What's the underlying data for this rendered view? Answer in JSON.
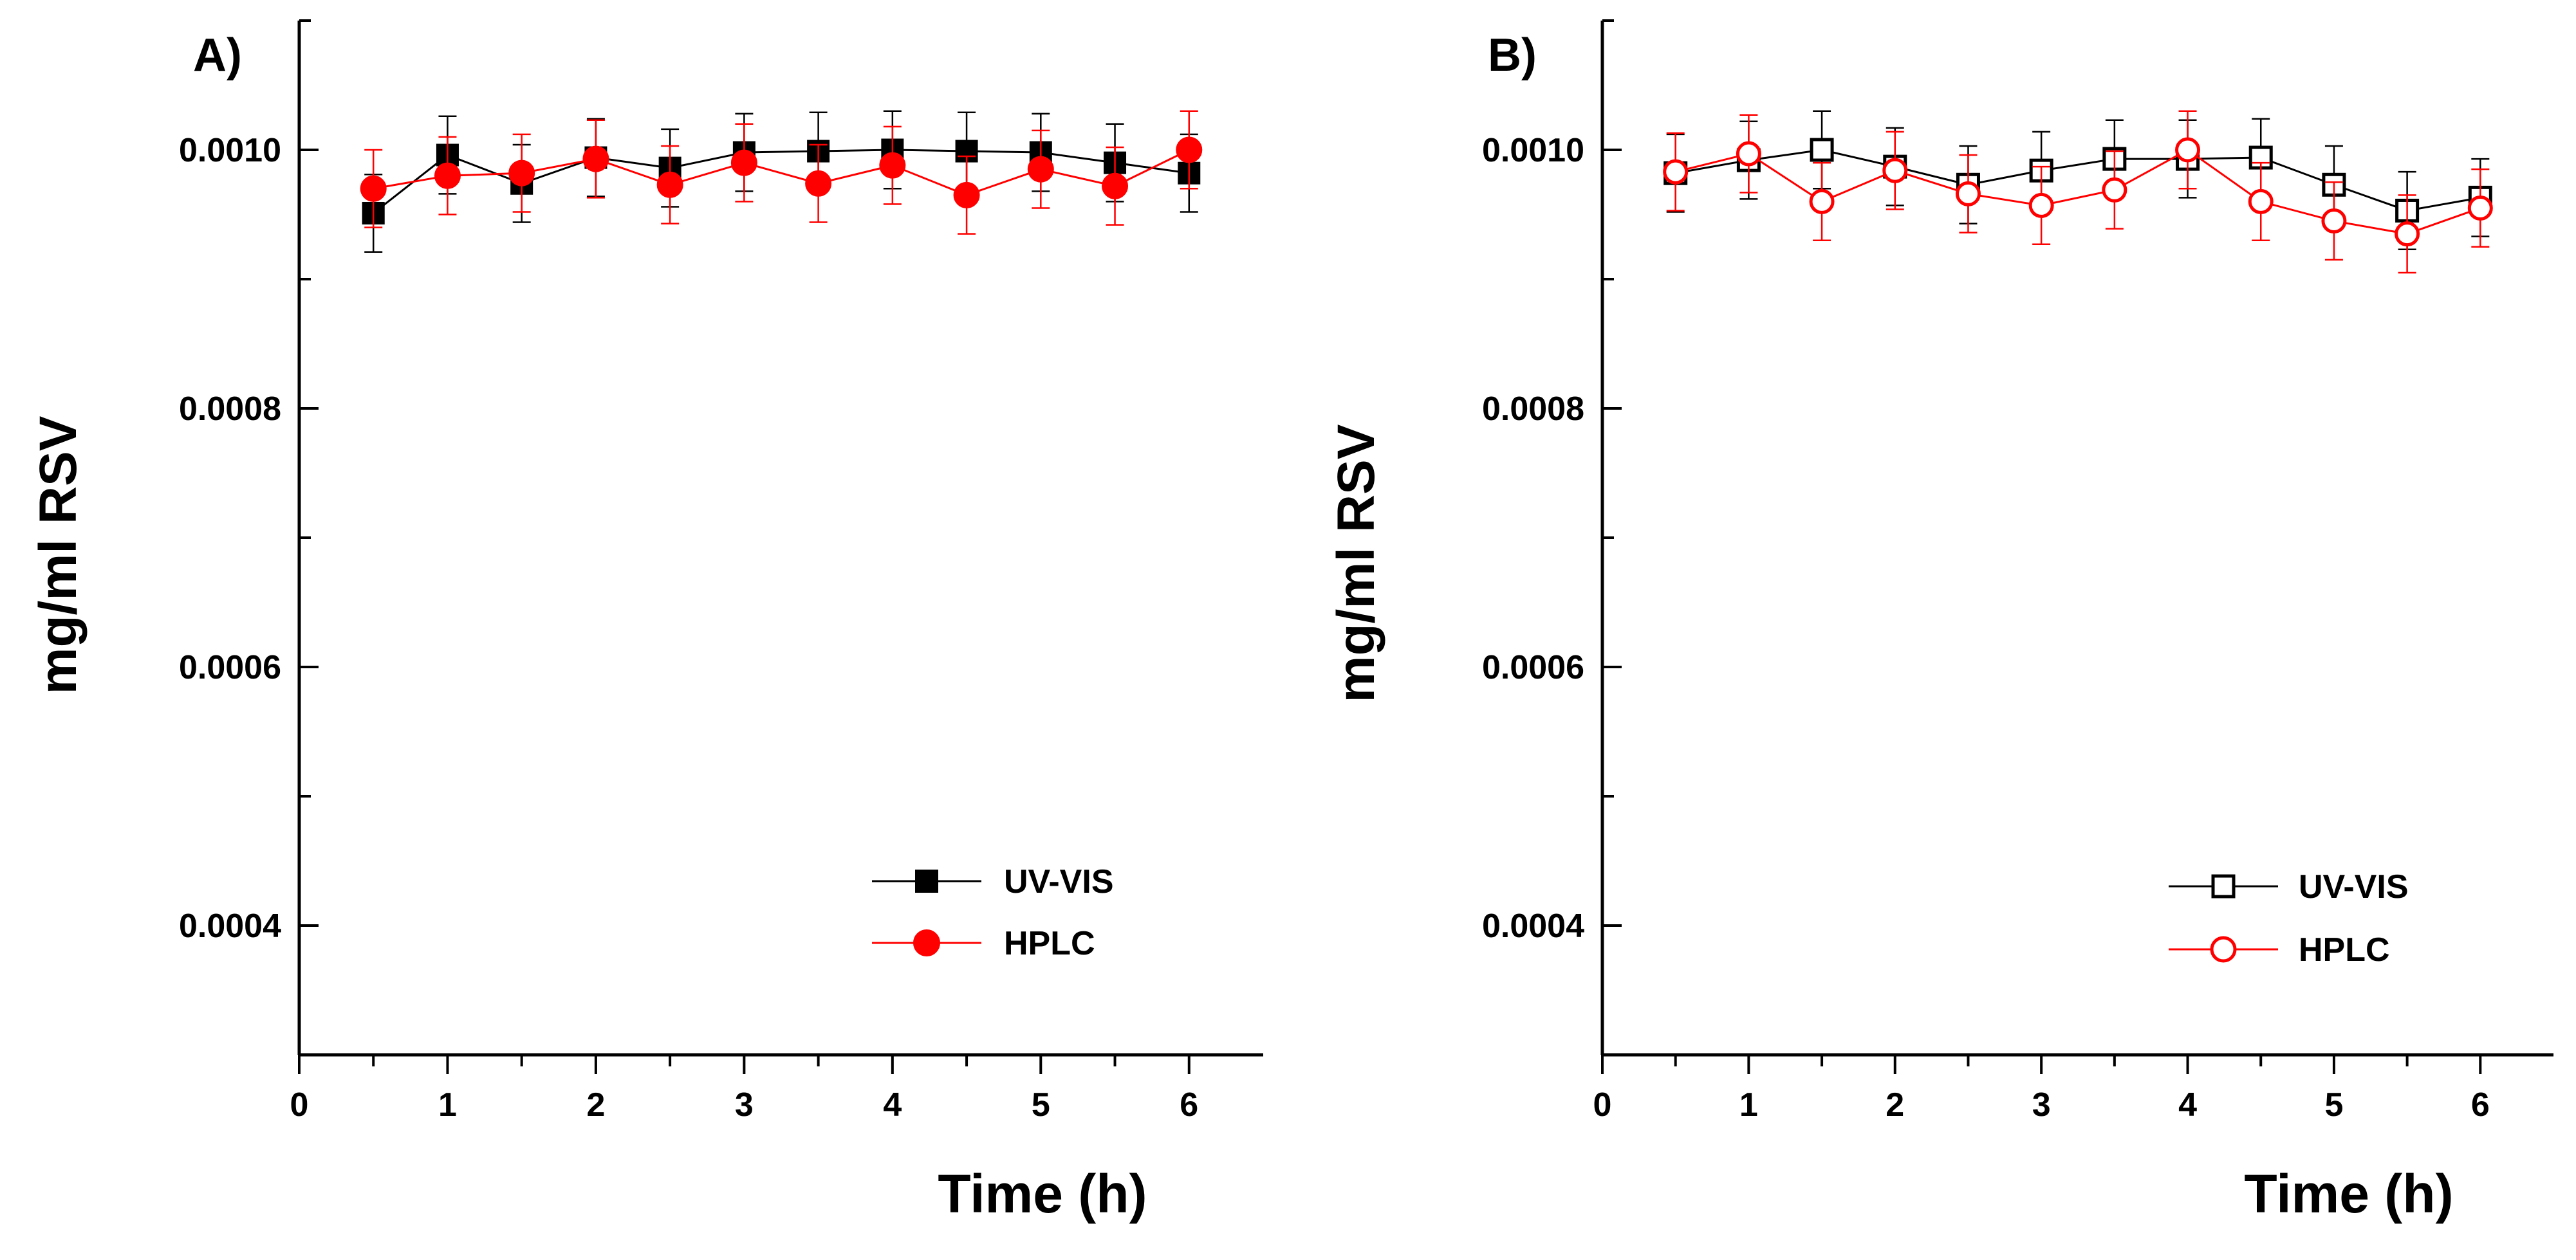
{
  "chart_data": [
    {
      "type": "line",
      "panel_label": "A)",
      "xlabel": "Time (h)",
      "ylabel": "mg/ml RSV",
      "xlim": [
        0,
        6.5
      ],
      "ylim": [
        0.0003,
        0.0011
      ],
      "x_major_ticks": [
        0,
        1,
        2,
        3,
        4,
        5,
        6
      ],
      "x_tick_labels": [
        "0",
        "1",
        "2",
        "3",
        "4",
        "5",
        "6"
      ],
      "y_major_ticks": [
        0.0004,
        0.0006,
        0.0008,
        0.001
      ],
      "y_tick_labels": [
        "0.0004",
        "0.0006",
        "0.0008",
        "0.0010"
      ],
      "legend_position": "lower-right",
      "x": [
        0.5,
        1,
        1.5,
        2,
        2.5,
        3,
        3.5,
        4,
        4.5,
        5,
        5.5,
        6
      ],
      "series": [
        {
          "name": "UV-VIS",
          "marker": "square",
          "filled": true,
          "color": "#000000",
          "values": [
            0.000951,
            0.000996,
            0.000974,
            0.000994,
            0.000986,
            0.000998,
            0.000999,
            0.001,
            0.000999,
            0.000998,
            0.00099,
            0.000982
          ],
          "errors": [
            3e-05,
            3e-05,
            3e-05,
            3e-05,
            3e-05,
            3e-05,
            3e-05,
            3e-05,
            3e-05,
            3e-05,
            3e-05,
            3e-05
          ]
        },
        {
          "name": "HPLC",
          "marker": "circle",
          "filled": true,
          "color": "#ff0000",
          "values": [
            0.00097,
            0.00098,
            0.000982,
            0.000993,
            0.000973,
            0.00099,
            0.000974,
            0.000988,
            0.000965,
            0.000985,
            0.000972,
            0.001
          ],
          "errors": [
            3e-05,
            3e-05,
            3e-05,
            3e-05,
            3e-05,
            3e-05,
            3e-05,
            3e-05,
            3e-05,
            3e-05,
            3e-05,
            3e-05
          ]
        }
      ]
    },
    {
      "type": "line",
      "panel_label": "B)",
      "xlabel": "Time (h)",
      "ylabel": "mg/ml RSV",
      "xlim": [
        0,
        6.5
      ],
      "ylim": [
        0.0003,
        0.0011
      ],
      "x_major_ticks": [
        0,
        1,
        2,
        3,
        4,
        5,
        6
      ],
      "x_tick_labels": [
        "0",
        "1",
        "2",
        "3",
        "4",
        "5",
        "6"
      ],
      "y_major_ticks": [
        0.0004,
        0.0006,
        0.0008,
        0.001
      ],
      "y_tick_labels": [
        "0.0004",
        "0.0006",
        "0.0008",
        "0.0010"
      ],
      "legend_position": "lower-right",
      "x": [
        0.5,
        1,
        1.5,
        2,
        2.5,
        3,
        3.5,
        4,
        4.5,
        5,
        5.5,
        6
      ],
      "series": [
        {
          "name": "UV-VIS",
          "marker": "square",
          "filled": false,
          "color": "#000000",
          "values": [
            0.000982,
            0.000992,
            0.001,
            0.000987,
            0.000973,
            0.000984,
            0.000993,
            0.000993,
            0.000994,
            0.000973,
            0.000953,
            0.000963
          ],
          "errors": [
            3e-05,
            3e-05,
            3e-05,
            3e-05,
            3e-05,
            3e-05,
            3e-05,
            3e-05,
            3e-05,
            3e-05,
            3e-05,
            3e-05
          ]
        },
        {
          "name": "HPLC",
          "marker": "circle",
          "filled": false,
          "color": "#ff0000",
          "values": [
            0.000983,
            0.000997,
            0.00096,
            0.000984,
            0.000966,
            0.000957,
            0.000969,
            0.001,
            0.00096,
            0.000945,
            0.000935,
            0.000955
          ],
          "errors": [
            3e-05,
            3e-05,
            3e-05,
            3e-05,
            3e-05,
            3e-05,
            3e-05,
            3e-05,
            3e-05,
            3e-05,
            3e-05,
            3e-05
          ]
        }
      ]
    }
  ]
}
